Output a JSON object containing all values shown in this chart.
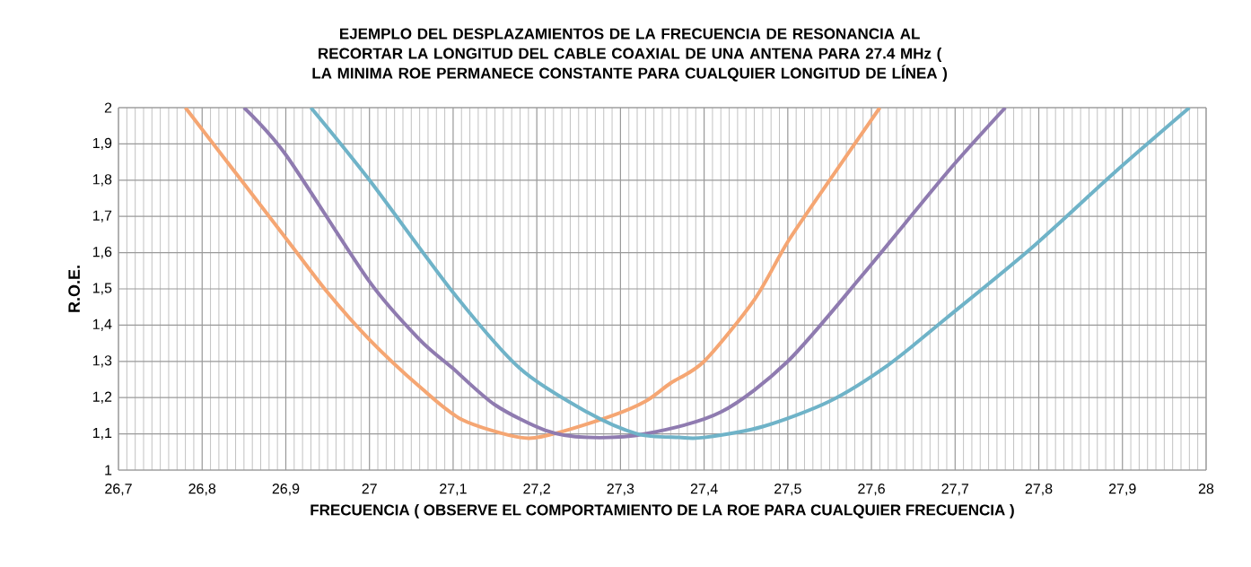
{
  "chart_data": {
    "type": "line",
    "title": "EJEMPLO DEL DESPLAZAMIENTOS  DE LA FRECUENCIA  DE RESONANCIA AL RECORTAR  LA LONGITUD DEL CABLE COAXIAL DE UNA ANTENA PARA 27.4 MHz  ( LA MINIMA  ROE PERMANECE CONSTANTE PARA CUALQUIER LONGITUD  DE LÍNEA )",
    "xlabel": "FRECUENCIA  ( OBSERVE EL COMPORTAMIENTO  DE LA ROE PARA CUALQUIER  FRECUENCIA  )",
    "ylabel": "R.O.E.",
    "xlim": [
      26.7,
      28
    ],
    "ylim": [
      1,
      2
    ],
    "xticks": [
      {
        "value": 26.7,
        "label": "26,7"
      },
      {
        "value": 26.8,
        "label": "26,8"
      },
      {
        "value": 26.9,
        "label": "26,9"
      },
      27,
      {
        "value": 27.1,
        "label": "27,1"
      },
      {
        "value": 27.2,
        "label": "27,2"
      },
      {
        "value": 27.3,
        "label": "27,3"
      },
      {
        "value": 27.4,
        "label": "27,4"
      },
      {
        "value": 27.5,
        "label": "27,5"
      },
      {
        "value": 27.6,
        "label": "27,6"
      },
      {
        "value": 27.7,
        "label": "27,7"
      },
      {
        "value": 27.8,
        "label": "27,8"
      },
      {
        "value": 27.9,
        "label": "27,9"
      },
      28
    ],
    "yticks": [
      1,
      {
        "value": 1.1,
        "label": "1,1"
      },
      {
        "value": 1.2,
        "label": "1,2"
      },
      {
        "value": 1.3,
        "label": "1,3"
      },
      {
        "value": 1.4,
        "label": "1,4"
      },
      {
        "value": 1.5,
        "label": "1,5"
      },
      {
        "value": 1.6,
        "label": "1,6"
      },
      {
        "value": 1.7,
        "label": "1,7"
      },
      {
        "value": 1.8,
        "label": "1,8"
      },
      {
        "value": 1.9,
        "label": "1,9"
      },
      2
    ],
    "grid": true,
    "series": [
      {
        "color": "#f5a673",
        "x": [
          26.78,
          26.9,
          26.95,
          27.0,
          27.06,
          27.11,
          27.18,
          27.22,
          27.29,
          27.33,
          27.36,
          27.4,
          27.46,
          27.5,
          27.55,
          27.61
        ],
        "values": [
          2,
          1.64,
          1.49,
          1.36,
          1.23,
          1.14,
          1.09,
          1.1,
          1.15,
          1.19,
          1.24,
          1.3,
          1.47,
          1.63,
          1.8,
          2
        ]
      },
      {
        "color": "#8f7bb0",
        "x": [
          26.85,
          26.9,
          27.0,
          27.06,
          27.1,
          27.15,
          27.21,
          27.26,
          27.33,
          27.42,
          27.5,
          27.59,
          27.69,
          27.76
        ],
        "values": [
          2,
          1.87,
          1.52,
          1.36,
          1.28,
          1.18,
          1.11,
          1.09,
          1.1,
          1.16,
          1.3,
          1.54,
          1.82,
          2
        ]
      },
      {
        "color": "#6fb3c8",
        "x": [
          26.93,
          27.0,
          27.1,
          27.18,
          27.26,
          27.32,
          27.37,
          27.4,
          27.47,
          27.55,
          27.62,
          27.69,
          27.79,
          27.89,
          27.98
        ],
        "values": [
          2,
          1.8,
          1.49,
          1.28,
          1.16,
          1.1,
          1.09,
          1.09,
          1.12,
          1.19,
          1.29,
          1.42,
          1.61,
          1.82,
          2
        ]
      }
    ]
  }
}
